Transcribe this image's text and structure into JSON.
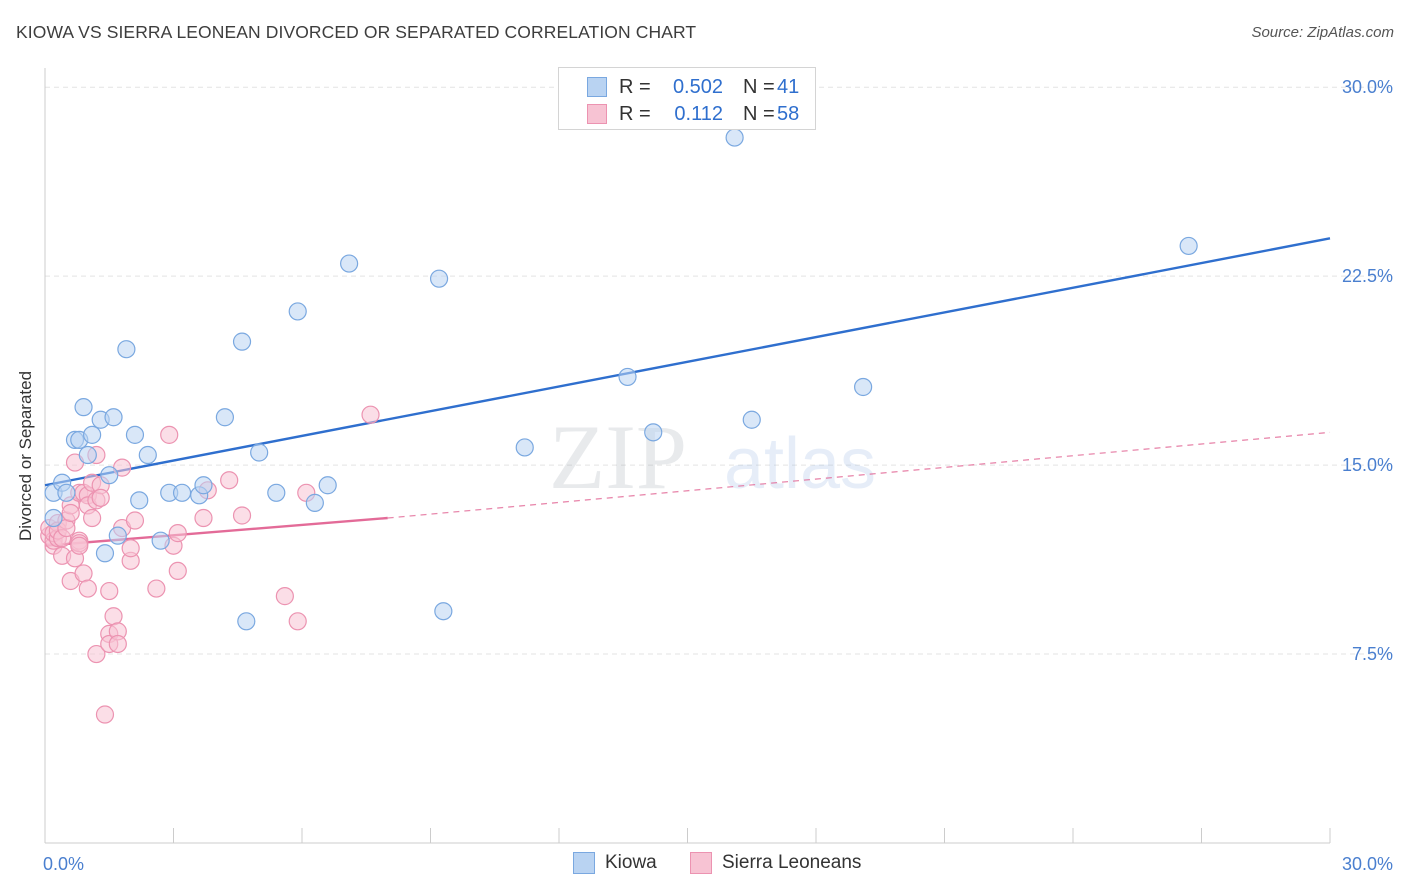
{
  "title": "KIOWA VS SIERRA LEONEAN DIVORCED OR SEPARATED CORRELATION CHART",
  "source": "Source: ZipAtlas.com",
  "watermark": {
    "zip": "ZIP",
    "atlas": "atlas"
  },
  "legend": {
    "rows": [
      {
        "r_label": "R =",
        "r_value": "0.502",
        "n_label": "N =",
        "n_value": "41"
      },
      {
        "r_label": "R =",
        "r_value": "0.112",
        "n_label": "N =",
        "n_value": "58"
      }
    ]
  },
  "bottom_legend": [
    "Kiowa",
    "Sierra Leoneans"
  ],
  "colors": {
    "kiowa_fill": "#b9d3f2",
    "kiowa_stroke": "#7aa8e0",
    "kiowa_line": "#2f6fce",
    "sierra_fill": "#f7c3d3",
    "sierra_stroke": "#ec93b1",
    "sierra_line": "#e36b98",
    "axis_text": "#4a7fcf",
    "grid": "#e3e3e3"
  },
  "chart_data": {
    "type": "scatter",
    "title": "KIOWA VS SIERRA LEONEAN DIVORCED OR SEPARATED CORRELATION CHART",
    "xlabel": "",
    "ylabel": "Divorced or Separated",
    "xlim": [
      0,
      30
    ],
    "ylim": [
      0,
      31
    ],
    "x_tick_labels": [
      "0.0%",
      "30.0%"
    ],
    "y_ticks": [
      7.5,
      15.0,
      22.5,
      30.0
    ],
    "y_tick_labels": [
      "7.5%",
      "15.0%",
      "22.5%",
      "30.0%"
    ],
    "grid": true,
    "legend_position": "top-center",
    "series": [
      {
        "name": "Kiowa",
        "R": 0.502,
        "N": 41,
        "trend": {
          "x": [
            0,
            30
          ],
          "y": [
            14.2,
            24.0
          ],
          "style": "solid"
        },
        "points": [
          [
            0.2,
            12.9
          ],
          [
            0.2,
            13.9
          ],
          [
            0.4,
            14.3
          ],
          [
            0.5,
            13.9
          ],
          [
            0.7,
            16.0
          ],
          [
            0.8,
            16.0
          ],
          [
            0.9,
            17.3
          ],
          [
            1.0,
            15.4
          ],
          [
            1.1,
            16.2
          ],
          [
            1.3,
            16.8
          ],
          [
            1.4,
            11.5
          ],
          [
            1.5,
            14.6
          ],
          [
            1.6,
            16.9
          ],
          [
            1.7,
            12.2
          ],
          [
            1.9,
            19.6
          ],
          [
            2.1,
            16.2
          ],
          [
            2.2,
            13.6
          ],
          [
            2.4,
            15.4
          ],
          [
            2.7,
            12.0
          ],
          [
            2.9,
            13.9
          ],
          [
            3.2,
            13.9
          ],
          [
            3.6,
            13.8
          ],
          [
            3.7,
            14.2
          ],
          [
            4.2,
            16.9
          ],
          [
            4.6,
            19.9
          ],
          [
            4.7,
            8.8
          ],
          [
            5.0,
            15.5
          ],
          [
            5.4,
            13.9
          ],
          [
            5.9,
            21.1
          ],
          [
            6.3,
            13.5
          ],
          [
            6.6,
            14.2
          ],
          [
            7.1,
            23.0
          ],
          [
            9.2,
            22.4
          ],
          [
            9.3,
            9.2
          ],
          [
            11.2,
            15.7
          ],
          [
            13.6,
            18.5
          ],
          [
            14.2,
            16.3
          ],
          [
            16.1,
            28.0
          ],
          [
            16.5,
            16.8
          ],
          [
            19.1,
            18.1
          ],
          [
            26.7,
            23.7
          ]
        ]
      },
      {
        "name": "Sierra Leoneans",
        "R": 0.112,
        "N": 58,
        "trend": {
          "x": [
            0,
            8.0
          ],
          "y": [
            11.8,
            12.9
          ],
          "style": "solid",
          "extended": {
            "x": [
              8.0,
              30
            ],
            "y": [
              12.9,
              16.3
            ],
            "style": "dashed"
          }
        },
        "points": [
          [
            0.1,
            12.2
          ],
          [
            0.1,
            12.5
          ],
          [
            0.2,
            11.8
          ],
          [
            0.2,
            12.0
          ],
          [
            0.2,
            12.3
          ],
          [
            0.3,
            12.1
          ],
          [
            0.3,
            12.7
          ],
          [
            0.3,
            12.4
          ],
          [
            0.4,
            11.4
          ],
          [
            0.4,
            12.1
          ],
          [
            0.5,
            12.8
          ],
          [
            0.5,
            12.5
          ],
          [
            0.6,
            10.4
          ],
          [
            0.6,
            13.4
          ],
          [
            0.6,
            13.1
          ],
          [
            0.7,
            11.3
          ],
          [
            0.7,
            15.1
          ],
          [
            0.8,
            12.0
          ],
          [
            0.8,
            11.9
          ],
          [
            0.8,
            11.8
          ],
          [
            0.8,
            13.9
          ],
          [
            0.9,
            13.9
          ],
          [
            0.9,
            10.7
          ],
          [
            1.0,
            10.1
          ],
          [
            1.0,
            13.8
          ],
          [
            1.0,
            13.4
          ],
          [
            1.1,
            14.3
          ],
          [
            1.1,
            12.9
          ],
          [
            1.2,
            15.4
          ],
          [
            1.2,
            7.5
          ],
          [
            1.2,
            13.6
          ],
          [
            1.3,
            14.2
          ],
          [
            1.3,
            13.7
          ],
          [
            1.4,
            5.1
          ],
          [
            1.5,
            10.0
          ],
          [
            1.5,
            8.3
          ],
          [
            1.5,
            7.9
          ],
          [
            1.6,
            9.0
          ],
          [
            1.7,
            8.4
          ],
          [
            1.7,
            7.9
          ],
          [
            1.8,
            14.9
          ],
          [
            1.8,
            12.5
          ],
          [
            2.0,
            11.2
          ],
          [
            2.0,
            11.7
          ],
          [
            2.1,
            12.8
          ],
          [
            2.6,
            10.1
          ],
          [
            2.9,
            16.2
          ],
          [
            3.0,
            11.8
          ],
          [
            3.1,
            12.3
          ],
          [
            3.1,
            10.8
          ],
          [
            3.7,
            12.9
          ],
          [
            3.8,
            14.0
          ],
          [
            4.3,
            14.4
          ],
          [
            4.6,
            13.0
          ],
          [
            5.6,
            9.8
          ],
          [
            5.9,
            8.8
          ],
          [
            6.1,
            13.9
          ],
          [
            7.6,
            17.0
          ]
        ]
      }
    ]
  }
}
